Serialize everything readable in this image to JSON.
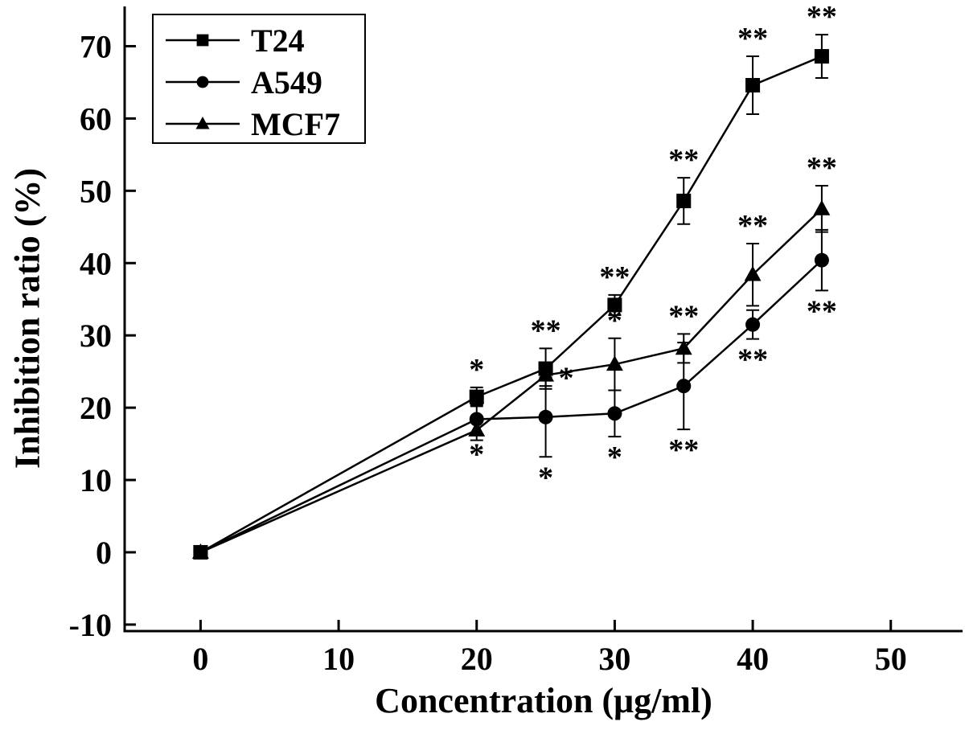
{
  "figure": {
    "background": "#ffffff",
    "ink_color": "#000000"
  },
  "chart_data": {
    "type": "line",
    "title": "",
    "xlabel": "Concentration (μg/ml)",
    "ylabel": "Inhibition ratio (%)",
    "xlim": [
      -5.5,
      55.2
    ],
    "ylim": [
      -10.9,
      75.5
    ],
    "xticks": [
      0,
      10,
      20,
      30,
      40,
      50
    ],
    "yticks": [
      -10,
      0,
      10,
      20,
      30,
      40,
      50,
      60,
      70
    ],
    "grid": false,
    "legend_position": "top-left",
    "x": [
      0,
      20,
      25,
      30,
      35,
      40,
      45
    ],
    "series": [
      {
        "name": "T24",
        "marker": "square",
        "values": [
          0,
          21.5,
          25.4,
          34.2,
          48.6,
          64.6,
          68.6
        ],
        "errors": [
          0.4,
          1.3,
          2.8,
          1.4,
          3.2,
          4.0,
          3.0
        ],
        "significance": [
          "",
          "*",
          "**",
          "**",
          "**",
          "**",
          "**"
        ],
        "significance_pos": [
          "",
          "above",
          "above",
          "above",
          "above",
          "above",
          "above"
        ]
      },
      {
        "name": "A549",
        "marker": "circle",
        "values": [
          0,
          18.4,
          18.7,
          19.2,
          23.0,
          31.5,
          40.4
        ],
        "errors": [
          0.4,
          2.0,
          5.5,
          3.2,
          6.0,
          2.0,
          4.2
        ],
        "significance": [
          "",
          "*",
          "*",
          "*",
          "**",
          "**",
          "**"
        ],
        "significance_pos": [
          "",
          "below",
          "below",
          "below",
          "below",
          "below",
          "below"
        ]
      },
      {
        "name": "MCF7",
        "marker": "triangle",
        "values": [
          0,
          16.9,
          24.5,
          26.0,
          28.2,
          38.4,
          47.5
        ],
        "errors": [
          0.4,
          1.4,
          1.5,
          3.6,
          2.0,
          4.3,
          3.2
        ],
        "significance": [
          "",
          "",
          "*",
          "*",
          "**",
          "**",
          "**"
        ],
        "significance_pos": [
          "",
          "",
          "right",
          "above",
          "above",
          "above",
          "above"
        ]
      }
    ]
  }
}
